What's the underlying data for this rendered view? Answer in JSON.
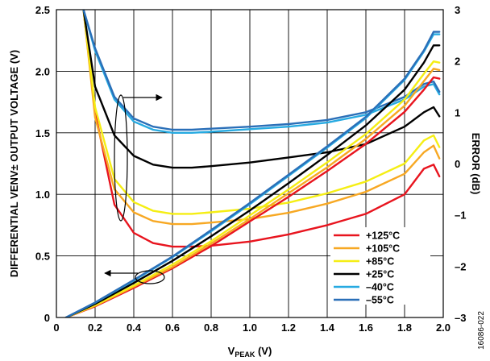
{
  "chart_data": {
    "type": "line",
    "xlabel": {
      "main": "V",
      "sub": "PEAK",
      "unit": " (V)"
    },
    "ylabel": "DIFFERENTIAL VENV± OUTPUT VOLTAGE (V)",
    "y2label": "ERROR (dB)",
    "figure_id": "16086-022",
    "xlim": [
      0,
      2.0
    ],
    "ylim": [
      0,
      2.5
    ],
    "y2lim": [
      -3,
      3
    ],
    "x_ticks": [
      0,
      0.2,
      0.4,
      0.6,
      0.8,
      1.0,
      1.2,
      1.4,
      1.6,
      1.8,
      2.0
    ],
    "x_tick_labels": [
      "0",
      "0.2",
      "0.4",
      "0.6",
      "0.8",
      "1.0",
      "1.2",
      "1.4",
      "1.6",
      "1.8",
      "2.0"
    ],
    "y_ticks": [
      0,
      0.5,
      1.0,
      1.5,
      2.0,
      2.5
    ],
    "y_tick_labels": [
      "0",
      "0.5",
      "1.0",
      "1.5",
      "2.0",
      "2.5"
    ],
    "y2_ticks": [
      -3,
      -2,
      -1,
      0,
      1,
      2,
      3
    ],
    "y2_tick_labels": [
      "–3",
      "–2",
      "–1",
      "0",
      "1",
      "2",
      "3"
    ],
    "grid": true,
    "legend_position": "bottom-right",
    "series": [
      {
        "name": "+125°C",
        "color": "#e8141e",
        "voltage": [
          [
            0.05,
            0.0
          ],
          [
            0.2,
            0.09
          ],
          [
            0.4,
            0.24
          ],
          [
            0.6,
            0.4
          ],
          [
            0.8,
            0.58
          ],
          [
            1.0,
            0.78
          ],
          [
            1.2,
            0.98
          ],
          [
            1.4,
            1.19
          ],
          [
            1.6,
            1.41
          ],
          [
            1.8,
            1.67
          ],
          [
            1.9,
            1.85
          ],
          [
            1.95,
            1.95
          ],
          [
            1.98,
            1.94
          ]
        ],
        "error": [
          [
            0.14,
            3.0
          ],
          [
            0.2,
            1.0
          ],
          [
            0.3,
            -0.8
          ],
          [
            0.4,
            -1.35
          ],
          [
            0.5,
            -1.55
          ],
          [
            0.6,
            -1.62
          ],
          [
            0.7,
            -1.62
          ],
          [
            0.8,
            -1.6
          ],
          [
            1.0,
            -1.52
          ],
          [
            1.2,
            -1.38
          ],
          [
            1.4,
            -1.2
          ],
          [
            1.6,
            -0.98
          ],
          [
            1.8,
            -0.6
          ],
          [
            1.9,
            -0.1
          ],
          [
            1.95,
            -0.02
          ],
          [
            1.98,
            -0.25
          ]
        ]
      },
      {
        "name": "+105°C",
        "color": "#f7a823",
        "voltage": [
          [
            0.05,
            0.0
          ],
          [
            0.2,
            0.095
          ],
          [
            0.4,
            0.25
          ],
          [
            0.6,
            0.41
          ],
          [
            0.8,
            0.6
          ],
          [
            1.0,
            0.8
          ],
          [
            1.2,
            1.01
          ],
          [
            1.4,
            1.22
          ],
          [
            1.6,
            1.45
          ],
          [
            1.8,
            1.72
          ],
          [
            1.9,
            1.92
          ],
          [
            1.95,
            2.02
          ],
          [
            1.98,
            2.01
          ]
        ],
        "error": [
          [
            0.14,
            3.0
          ],
          [
            0.2,
            0.9
          ],
          [
            0.3,
            -0.5
          ],
          [
            0.4,
            -0.95
          ],
          [
            0.5,
            -1.12
          ],
          [
            0.6,
            -1.18
          ],
          [
            0.7,
            -1.18
          ],
          [
            0.8,
            -1.15
          ],
          [
            1.0,
            -1.08
          ],
          [
            1.2,
            -0.96
          ],
          [
            1.4,
            -0.78
          ],
          [
            1.6,
            -0.55
          ],
          [
            1.8,
            -0.2
          ],
          [
            1.9,
            0.22
          ],
          [
            1.95,
            0.35
          ],
          [
            1.98,
            0.1
          ]
        ]
      },
      {
        "name": "+85°C",
        "color": "#f5ee14",
        "voltage": [
          [
            0.05,
            0.0
          ],
          [
            0.2,
            0.1
          ],
          [
            0.4,
            0.26
          ],
          [
            0.6,
            0.43
          ],
          [
            0.8,
            0.62
          ],
          [
            1.0,
            0.83
          ],
          [
            1.2,
            1.04
          ],
          [
            1.4,
            1.26
          ],
          [
            1.6,
            1.49
          ],
          [
            1.8,
            1.77
          ],
          [
            1.9,
            1.98
          ],
          [
            1.95,
            2.08
          ],
          [
            1.98,
            2.07
          ]
        ],
        "error": [
          [
            0.14,
            3.0
          ],
          [
            0.2,
            1.1
          ],
          [
            0.3,
            -0.3
          ],
          [
            0.4,
            -0.75
          ],
          [
            0.5,
            -0.92
          ],
          [
            0.6,
            -0.98
          ],
          [
            0.7,
            -0.98
          ],
          [
            0.8,
            -0.95
          ],
          [
            1.0,
            -0.88
          ],
          [
            1.2,
            -0.76
          ],
          [
            1.4,
            -0.58
          ],
          [
            1.6,
            -0.35
          ],
          [
            1.8,
            0.0
          ],
          [
            1.9,
            0.45
          ],
          [
            1.95,
            0.55
          ],
          [
            1.98,
            0.32
          ]
        ]
      },
      {
        "name": "+25°C",
        "color": "#000000",
        "voltage": [
          [
            0.05,
            0.0
          ],
          [
            0.2,
            0.11
          ],
          [
            0.4,
            0.28
          ],
          [
            0.6,
            0.46
          ],
          [
            0.8,
            0.66
          ],
          [
            1.0,
            0.87
          ],
          [
            1.2,
            1.09
          ],
          [
            1.4,
            1.32
          ],
          [
            1.6,
            1.56
          ],
          [
            1.8,
            1.85
          ],
          [
            1.9,
            2.07
          ],
          [
            1.95,
            2.21
          ],
          [
            1.98,
            2.21
          ]
        ],
        "error": [
          [
            0.14,
            3.0
          ],
          [
            0.2,
            1.5
          ],
          [
            0.3,
            0.55
          ],
          [
            0.4,
            0.15
          ],
          [
            0.5,
            -0.02
          ],
          [
            0.6,
            -0.08
          ],
          [
            0.7,
            -0.08
          ],
          [
            0.8,
            -0.05
          ],
          [
            1.0,
            0.02
          ],
          [
            1.2,
            0.12
          ],
          [
            1.4,
            0.22
          ],
          [
            1.6,
            0.38
          ],
          [
            1.8,
            0.72
          ],
          [
            1.9,
            1.0
          ],
          [
            1.95,
            1.1
          ],
          [
            1.98,
            0.92
          ]
        ]
      },
      {
        "name": "–40°C",
        "color": "#27aae1",
        "voltage": [
          [
            0.05,
            0.0
          ],
          [
            0.2,
            0.12
          ],
          [
            0.4,
            0.3
          ],
          [
            0.6,
            0.49
          ],
          [
            0.8,
            0.7
          ],
          [
            1.0,
            0.92
          ],
          [
            1.2,
            1.15
          ],
          [
            1.4,
            1.38
          ],
          [
            1.6,
            1.62
          ],
          [
            1.8,
            1.93
          ],
          [
            1.9,
            2.16
          ],
          [
            1.95,
            2.3
          ],
          [
            1.98,
            2.3
          ]
        ],
        "error": [
          [
            0.14,
            3.0
          ],
          [
            0.2,
            2.2
          ],
          [
            0.3,
            1.25
          ],
          [
            0.4,
            0.82
          ],
          [
            0.5,
            0.66
          ],
          [
            0.6,
            0.6
          ],
          [
            0.7,
            0.6
          ],
          [
            0.8,
            0.62
          ],
          [
            1.0,
            0.67
          ],
          [
            1.2,
            0.72
          ],
          [
            1.4,
            0.8
          ],
          [
            1.6,
            0.95
          ],
          [
            1.8,
            1.25
          ],
          [
            1.9,
            1.5
          ],
          [
            1.95,
            1.55
          ],
          [
            1.98,
            1.35
          ]
        ]
      },
      {
        "name": "–55°C",
        "color": "#2a6fb8",
        "voltage": [
          [
            0.05,
            0.0
          ],
          [
            0.2,
            0.122
          ],
          [
            0.4,
            0.305
          ],
          [
            0.6,
            0.495
          ],
          [
            0.8,
            0.71
          ],
          [
            1.0,
            0.93
          ],
          [
            1.2,
            1.16
          ],
          [
            1.4,
            1.39
          ],
          [
            1.6,
            1.63
          ],
          [
            1.8,
            1.94
          ],
          [
            1.9,
            2.17
          ],
          [
            1.95,
            2.32
          ],
          [
            1.98,
            2.32
          ]
        ],
        "error": [
          [
            0.14,
            3.0
          ],
          [
            0.2,
            2.25
          ],
          [
            0.3,
            1.3
          ],
          [
            0.4,
            0.88
          ],
          [
            0.5,
            0.72
          ],
          [
            0.6,
            0.66
          ],
          [
            0.7,
            0.66
          ],
          [
            0.8,
            0.68
          ],
          [
            1.0,
            0.72
          ],
          [
            1.2,
            0.77
          ],
          [
            1.4,
            0.85
          ],
          [
            1.6,
            1.0
          ],
          [
            1.8,
            1.3
          ],
          [
            1.9,
            1.55
          ],
          [
            1.95,
            1.6
          ],
          [
            1.98,
            1.4
          ]
        ]
      }
    ]
  }
}
